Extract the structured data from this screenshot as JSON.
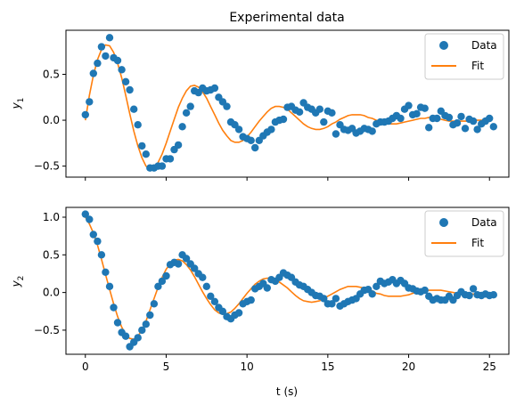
{
  "chart_data": [
    {
      "type": "scatter",
      "title": "Experimental data",
      "xlabel": "",
      "ylabel": "y",
      "ylabel_sub": "1",
      "xlim": [
        -1.2,
        26.2
      ],
      "ylim": [
        -0.62,
        0.98
      ],
      "xticks": [
        0,
        5,
        10,
        15,
        20,
        25
      ],
      "show_xticklabels": false,
      "yticks": [
        -0.5,
        0.0,
        0.5
      ],
      "ytick_labels": [
        "−0.5",
        "0.0",
        "0.5"
      ],
      "legend": {
        "placement": "top-right",
        "entries": [
          "Data",
          "Fit"
        ]
      },
      "colors": {
        "data": "#1f77b4",
        "fit": "#ff7f0e"
      },
      "series": [
        {
          "name": "Data",
          "kind": "markers",
          "x": [
            0.0,
            0.25,
            0.5,
            0.75,
            1.0,
            1.25,
            1.5,
            1.75,
            2.0,
            2.25,
            2.5,
            2.75,
            3.0,
            3.25,
            3.5,
            3.75,
            4.0,
            4.25,
            4.5,
            4.75,
            5.0,
            5.25,
            5.5,
            5.75,
            6.0,
            6.25,
            6.5,
            6.75,
            7.0,
            7.25,
            7.5,
            7.75,
            8.0,
            8.25,
            8.5,
            8.75,
            9.0,
            9.25,
            9.5,
            9.75,
            10.0,
            10.25,
            10.5,
            10.75,
            11.0,
            11.25,
            11.5,
            11.75,
            12.0,
            12.25,
            12.5,
            12.75,
            13.0,
            13.25,
            13.5,
            13.75,
            14.0,
            14.25,
            14.5,
            14.75,
            15.0,
            15.25,
            15.5,
            15.75,
            16.0,
            16.25,
            16.5,
            16.75,
            17.0,
            17.25,
            17.5,
            17.75,
            18.0,
            18.25,
            18.5,
            18.75,
            19.0,
            19.25,
            19.5,
            19.75,
            20.0,
            20.25,
            20.5,
            20.75,
            21.0,
            21.25,
            21.5,
            21.75,
            22.0,
            22.25,
            22.5,
            22.75,
            23.0,
            23.25,
            23.5,
            23.75,
            24.0,
            24.25,
            24.5,
            24.75,
            25.0,
            25.25
          ],
          "y": [
            0.06,
            0.2,
            0.51,
            0.62,
            0.8,
            0.7,
            0.9,
            0.68,
            0.65,
            0.55,
            0.42,
            0.33,
            0.12,
            -0.05,
            -0.28,
            -0.37,
            -0.52,
            -0.52,
            -0.5,
            -0.5,
            -0.42,
            -0.42,
            -0.32,
            -0.27,
            -0.07,
            0.08,
            0.15,
            0.32,
            0.3,
            0.35,
            0.32,
            0.33,
            0.35,
            0.25,
            0.2,
            0.15,
            -0.02,
            -0.05,
            -0.1,
            -0.18,
            -0.2,
            -0.22,
            -0.3,
            -0.22,
            -0.17,
            -0.13,
            -0.1,
            -0.02,
            0.0,
            0.01,
            0.14,
            0.15,
            0.11,
            0.09,
            0.19,
            0.14,
            0.12,
            0.08,
            0.12,
            -0.02,
            0.1,
            0.08,
            -0.15,
            -0.05,
            -0.1,
            -0.11,
            -0.09,
            -0.14,
            -0.12,
            -0.09,
            -0.1,
            -0.12,
            -0.04,
            -0.02,
            -0.02,
            -0.01,
            0.02,
            0.05,
            0.02,
            0.12,
            0.16,
            0.06,
            0.07,
            0.14,
            0.13,
            -0.08,
            0.02,
            0.02,
            0.1,
            0.05,
            0.03,
            -0.05,
            -0.03,
            0.04,
            -0.09,
            0.01,
            -0.01,
            -0.1,
            -0.04,
            -0.01,
            0.02,
            -0.07
          ]
        },
        {
          "name": "Fit",
          "kind": "line",
          "x": [
            0.0,
            0.25,
            0.5,
            0.75,
            1.0,
            1.25,
            1.5,
            1.75,
            2.0,
            2.25,
            2.5,
            2.75,
            3.0,
            3.25,
            3.5,
            3.75,
            4.0,
            4.25,
            4.5,
            4.75,
            5.0,
            5.25,
            5.5,
            5.75,
            6.0,
            6.25,
            6.5,
            6.75,
            7.0,
            7.25,
            7.5,
            7.75,
            8.0,
            8.25,
            8.5,
            8.75,
            9.0,
            9.25,
            9.5,
            9.75,
            10.0,
            10.25,
            10.5,
            10.75,
            11.0,
            11.25,
            11.5,
            11.75,
            12.0,
            12.25,
            12.5,
            12.75,
            13.0,
            13.25,
            13.5,
            13.75,
            14.0,
            14.25,
            14.5,
            14.75,
            15.0,
            15.25,
            15.5,
            15.75,
            16.0,
            16.25,
            16.5,
            16.75,
            17.0,
            17.25,
            17.5,
            17.75,
            18.0,
            18.25,
            18.5,
            18.75,
            19.0,
            19.25,
            19.5,
            19.75,
            20.0,
            20.25,
            20.5,
            20.75,
            21.0,
            21.25,
            21.5,
            21.75,
            22.0,
            22.25,
            22.5,
            22.75,
            23.0,
            23.25,
            23.5,
            23.75,
            24.0,
            24.25,
            24.5,
            24.75,
            25.0
          ],
          "y": [
            0.0,
            0.27,
            0.49,
            0.66,
            0.77,
            0.82,
            0.81,
            0.74,
            0.62,
            0.46,
            0.27,
            0.07,
            -0.12,
            -0.28,
            -0.41,
            -0.5,
            -0.53,
            -0.52,
            -0.46,
            -0.37,
            -0.25,
            -0.12,
            0.01,
            0.14,
            0.24,
            0.32,
            0.37,
            0.38,
            0.36,
            0.31,
            0.24,
            0.15,
            0.06,
            -0.03,
            -0.11,
            -0.17,
            -0.22,
            -0.24,
            -0.24,
            -0.22,
            -0.18,
            -0.13,
            -0.07,
            -0.01,
            0.04,
            0.09,
            0.13,
            0.15,
            0.15,
            0.14,
            0.12,
            0.08,
            0.04,
            0.0,
            -0.04,
            -0.07,
            -0.09,
            -0.1,
            -0.1,
            -0.09,
            -0.07,
            -0.04,
            -0.02,
            0.01,
            0.03,
            0.05,
            0.06,
            0.06,
            0.06,
            0.05,
            0.03,
            0.02,
            0.0,
            -0.02,
            -0.03,
            -0.04,
            -0.04,
            -0.04,
            -0.03,
            -0.02,
            -0.01,
            0.0,
            0.01,
            0.02,
            0.02,
            0.03,
            0.02,
            0.02,
            0.01,
            0.0,
            -0.01,
            -0.01,
            -0.01,
            -0.01,
            -0.01,
            -0.01,
            0.0,
            0.0,
            0.0,
            0.01,
            0.01
          ]
        }
      ]
    },
    {
      "type": "scatter",
      "title": "",
      "xlabel": "t (s)",
      "ylabel": "y",
      "ylabel_sub": "2",
      "xlim": [
        -1.2,
        26.2
      ],
      "ylim": [
        -0.82,
        1.13
      ],
      "xticks": [
        0,
        5,
        10,
        15,
        20,
        25
      ],
      "xtick_labels": [
        "0",
        "5",
        "10",
        "15",
        "20",
        "25"
      ],
      "show_xticklabels": true,
      "yticks": [
        -0.5,
        0.0,
        0.5,
        1.0
      ],
      "ytick_labels": [
        "−0.5",
        "0.0",
        "0.5",
        "1.0"
      ],
      "legend": {
        "placement": "top-right",
        "entries": [
          "Data",
          "Fit"
        ]
      },
      "colors": {
        "data": "#1f77b4",
        "fit": "#ff7f0e"
      },
      "series": [
        {
          "name": "Data",
          "kind": "markers",
          "x": [
            0.0,
            0.25,
            0.5,
            0.75,
            1.0,
            1.25,
            1.5,
            1.75,
            2.0,
            2.25,
            2.5,
            2.75,
            3.0,
            3.25,
            3.5,
            3.75,
            4.0,
            4.25,
            4.5,
            4.75,
            5.0,
            5.25,
            5.5,
            5.75,
            6.0,
            6.25,
            6.5,
            6.75,
            7.0,
            7.25,
            7.5,
            7.75,
            8.0,
            8.25,
            8.5,
            8.75,
            9.0,
            9.25,
            9.5,
            9.75,
            10.0,
            10.25,
            10.5,
            10.75,
            11.0,
            11.25,
            11.5,
            11.75,
            12.0,
            12.25,
            12.5,
            12.75,
            13.0,
            13.25,
            13.5,
            13.75,
            14.0,
            14.25,
            14.5,
            14.75,
            15.0,
            15.25,
            15.5,
            15.75,
            16.0,
            16.25,
            16.5,
            16.75,
            17.0,
            17.25,
            17.5,
            17.75,
            18.0,
            18.25,
            18.5,
            18.75,
            19.0,
            19.25,
            19.5,
            19.75,
            20.0,
            20.25,
            20.5,
            20.75,
            21.0,
            21.25,
            21.5,
            21.75,
            22.0,
            22.25,
            22.5,
            22.75,
            23.0,
            23.25,
            23.5,
            23.75,
            24.0,
            24.25,
            24.5,
            24.75,
            25.0,
            25.25
          ],
          "y": [
            1.04,
            0.97,
            0.77,
            0.68,
            0.5,
            0.27,
            0.08,
            -0.2,
            -0.4,
            -0.53,
            -0.58,
            -0.72,
            -0.66,
            -0.6,
            -0.5,
            -0.42,
            -0.3,
            -0.15,
            0.08,
            0.15,
            0.22,
            0.37,
            0.4,
            0.38,
            0.5,
            0.45,
            0.38,
            0.32,
            0.25,
            0.2,
            0.08,
            -0.05,
            -0.12,
            -0.2,
            -0.25,
            -0.32,
            -0.35,
            -0.3,
            -0.27,
            -0.15,
            -0.12,
            -0.1,
            0.05,
            0.08,
            0.12,
            0.06,
            0.17,
            0.15,
            0.2,
            0.26,
            0.23,
            0.2,
            0.14,
            0.1,
            0.08,
            0.04,
            0.0,
            -0.04,
            -0.05,
            -0.08,
            -0.15,
            -0.15,
            -0.08,
            -0.18,
            -0.15,
            -0.12,
            -0.1,
            -0.08,
            -0.02,
            0.03,
            0.04,
            -0.02,
            0.08,
            0.15,
            0.12,
            0.14,
            0.17,
            0.12,
            0.16,
            0.12,
            0.06,
            0.05,
            0.02,
            0.01,
            0.03,
            -0.05,
            -0.1,
            -0.08,
            -0.1,
            -0.1,
            -0.05,
            -0.1,
            -0.04,
            0.01,
            -0.03,
            -0.04,
            0.05,
            -0.03,
            -0.04,
            -0.02,
            -0.04,
            -0.03
          ]
        },
        {
          "name": "Fit",
          "kind": "line",
          "x": [
            0.0,
            0.25,
            0.5,
            0.75,
            1.0,
            1.25,
            1.5,
            1.75,
            2.0,
            2.25,
            2.5,
            2.75,
            3.0,
            3.25,
            3.5,
            3.75,
            4.0,
            4.25,
            4.5,
            4.75,
            5.0,
            5.25,
            5.5,
            5.75,
            6.0,
            6.25,
            6.5,
            6.75,
            7.0,
            7.25,
            7.5,
            7.75,
            8.0,
            8.25,
            8.5,
            8.75,
            9.0,
            9.25,
            9.5,
            9.75,
            10.0,
            10.25,
            10.5,
            10.75,
            11.0,
            11.25,
            11.5,
            11.75,
            12.0,
            12.25,
            12.5,
            12.75,
            13.0,
            13.25,
            13.5,
            13.75,
            14.0,
            14.25,
            14.5,
            14.75,
            15.0,
            15.25,
            15.5,
            15.75,
            16.0,
            16.25,
            16.5,
            16.75,
            17.0,
            17.25,
            17.5,
            17.75,
            18.0,
            18.25,
            18.5,
            18.75,
            19.0,
            19.25,
            19.5,
            19.75,
            20.0,
            20.25,
            20.5,
            20.75,
            21.0,
            21.25,
            21.5,
            21.75,
            22.0,
            22.25,
            22.5,
            22.75,
            23.0,
            23.25,
            23.5,
            23.75,
            24.0,
            24.25,
            24.5,
            24.75,
            25.0
          ],
          "y": [
            1.0,
            0.91,
            0.79,
            0.63,
            0.44,
            0.24,
            0.04,
            -0.15,
            -0.32,
            -0.46,
            -0.56,
            -0.61,
            -0.62,
            -0.58,
            -0.5,
            -0.38,
            -0.23,
            -0.08,
            0.07,
            0.2,
            0.31,
            0.38,
            0.43,
            0.44,
            0.42,
            0.37,
            0.3,
            0.21,
            0.11,
            0.01,
            -0.08,
            -0.16,
            -0.23,
            -0.27,
            -0.29,
            -0.28,
            -0.26,
            -0.21,
            -0.15,
            -0.08,
            -0.01,
            0.05,
            0.11,
            0.15,
            0.18,
            0.19,
            0.19,
            0.17,
            0.14,
            0.1,
            0.06,
            0.01,
            -0.04,
            -0.08,
            -0.11,
            -0.12,
            -0.13,
            -0.12,
            -0.11,
            -0.08,
            -0.05,
            -0.02,
            0.01,
            0.04,
            0.06,
            0.08,
            0.08,
            0.08,
            0.07,
            0.06,
            0.04,
            0.02,
            -0.01,
            -0.02,
            -0.04,
            -0.05,
            -0.05,
            -0.05,
            -0.05,
            -0.04,
            -0.03,
            -0.01,
            0.0,
            0.01,
            0.02,
            0.03,
            0.03,
            0.03,
            0.03,
            0.02,
            0.01,
            0.0,
            -0.01,
            -0.01,
            -0.02,
            -0.02,
            -0.02,
            -0.02,
            -0.01,
            -0.01,
            0.0
          ]
        }
      ]
    }
  ]
}
